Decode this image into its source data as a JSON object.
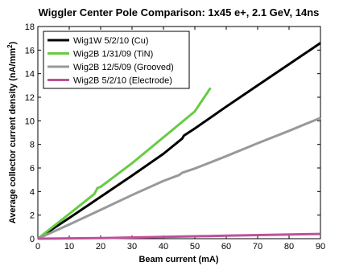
{
  "chart_data": {
    "type": "line",
    "title": "Wiggler Center Pole Comparison: 1x45 e+, 2.1 GeV, 14ns",
    "xlabel": "Beam current (mA)",
    "ylabel_prefix": "Average collector current density (nA/mm",
    "ylabel_sup": "2",
    "ylabel_suffix": ")",
    "xlim": [
      0,
      90
    ],
    "ylim": [
      0,
      18
    ],
    "xticks": [
      0,
      10,
      20,
      30,
      40,
      50,
      60,
      70,
      80,
      90
    ],
    "yticks": [
      0,
      2,
      4,
      6,
      8,
      10,
      12,
      14,
      16,
      18
    ],
    "legend_position": "top-left",
    "grid": false,
    "series": [
      {
        "name": "Wig1W 5/2/10 (Cu)",
        "color": "#000000",
        "points": [
          [
            0,
            0
          ],
          [
            10,
            1.75
          ],
          [
            20,
            3.55
          ],
          [
            30,
            5.35
          ],
          [
            40,
            7.2
          ],
          [
            46,
            8.5
          ],
          [
            46.5,
            8.75
          ],
          [
            50,
            9.35
          ],
          [
            60,
            11.2
          ],
          [
            70,
            13.0
          ],
          [
            80,
            14.8
          ],
          [
            90,
            16.6
          ]
        ]
      },
      {
        "name": "Wig2B 1/31/09 (TiN)",
        "color": "#66cc44",
        "points": [
          [
            0,
            0
          ],
          [
            10,
            2.1
          ],
          [
            18,
            3.8
          ],
          [
            19,
            4.3
          ],
          [
            20,
            4.4
          ],
          [
            30,
            6.4
          ],
          [
            40,
            8.6
          ],
          [
            50,
            10.8
          ],
          [
            55,
            12.8
          ]
        ]
      },
      {
        "name": "Wig2B 12/5/09 (Grooved)",
        "color": "#999999",
        "points": [
          [
            0,
            0
          ],
          [
            10,
            1.2
          ],
          [
            20,
            2.45
          ],
          [
            30,
            3.7
          ],
          [
            40,
            4.9
          ],
          [
            45,
            5.4
          ],
          [
            46,
            5.6
          ],
          [
            50,
            5.95
          ],
          [
            60,
            7.0
          ],
          [
            70,
            8.1
          ],
          [
            80,
            9.15
          ],
          [
            90,
            10.25
          ]
        ]
      },
      {
        "name": "Wig2B 5/2/10 (Electrode)",
        "color": "#c0509a",
        "points": [
          [
            0,
            0
          ],
          [
            20,
            0.05
          ],
          [
            40,
            0.15
          ],
          [
            60,
            0.25
          ],
          [
            90,
            0.4
          ]
        ]
      }
    ]
  }
}
